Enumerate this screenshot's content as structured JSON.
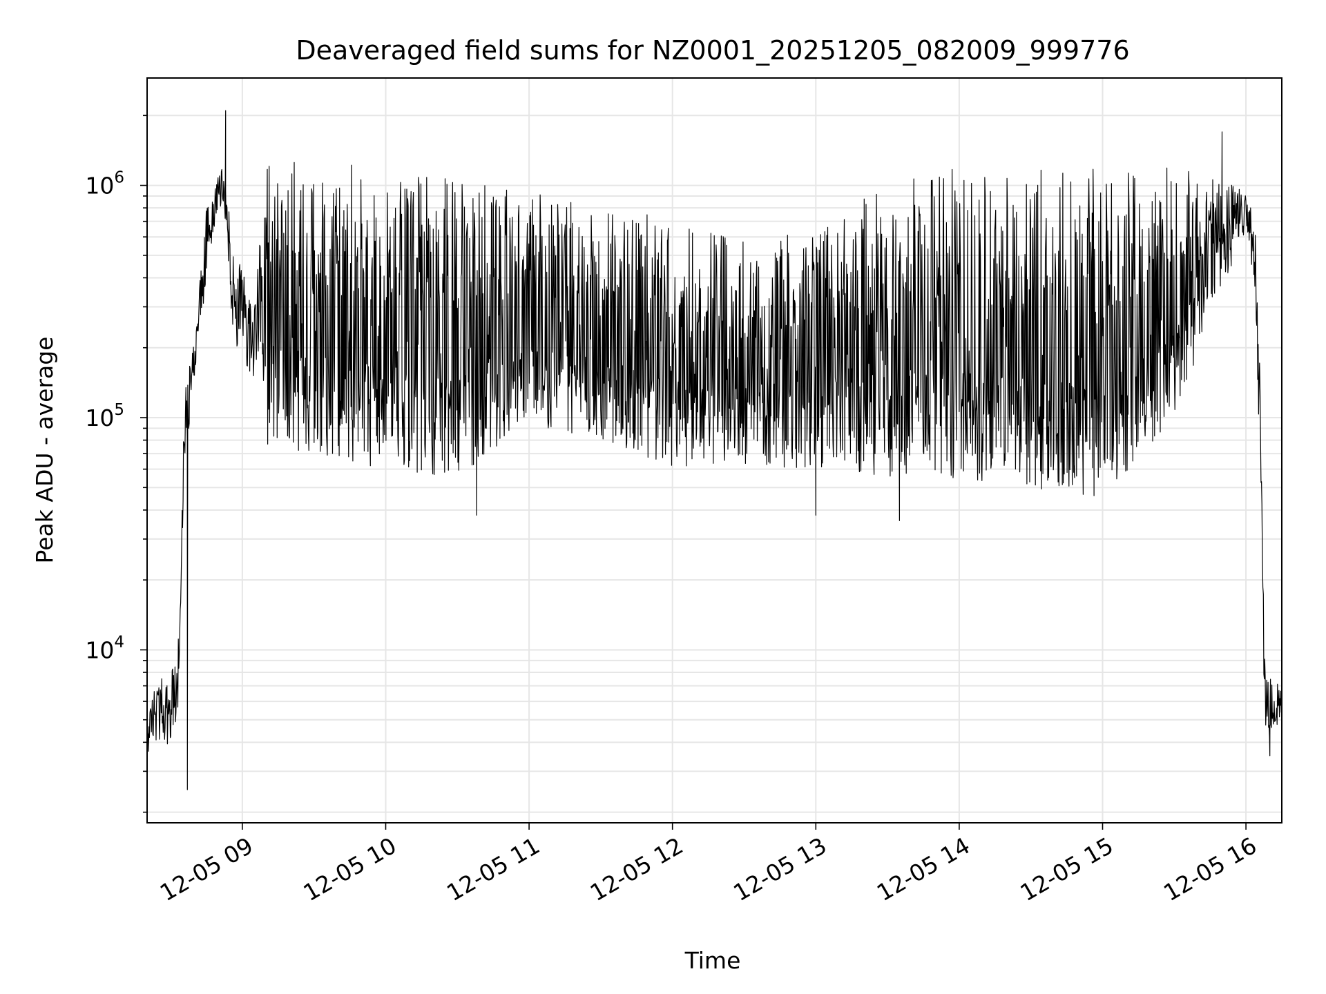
{
  "chart_data": {
    "type": "line",
    "title": "Deaveraged field sums for NZ0001_20251205_082009_999776",
    "xlabel": "Time",
    "ylabel": "Peak ADU - average",
    "yscale": "log",
    "grid": true,
    "legend": "none",
    "line_color": "#000000",
    "grid_color": "#e6e6e6",
    "xlim": [
      "2025-12-05 08:20:09",
      "2025-12-05 16:15:00"
    ],
    "ylim": [
      1800,
      2900000
    ],
    "x_ticks": [
      {
        "t": "2025-12-05 09:00",
        "label": "12-05 09"
      },
      {
        "t": "2025-12-05 10:00",
        "label": "12-05 10"
      },
      {
        "t": "2025-12-05 11:00",
        "label": "12-05 11"
      },
      {
        "t": "2025-12-05 12:00",
        "label": "12-05 12"
      },
      {
        "t": "2025-12-05 13:00",
        "label": "12-05 13"
      },
      {
        "t": "2025-12-05 14:00",
        "label": "12-05 14"
      },
      {
        "t": "2025-12-05 15:00",
        "label": "12-05 15"
      },
      {
        "t": "2025-12-05 16:00",
        "label": "12-05 16"
      }
    ],
    "y_ticks": [
      {
        "v": 10000,
        "base": "10",
        "exp": "4"
      },
      {
        "v": 100000,
        "base": "10",
        "exp": "5"
      },
      {
        "v": 1000000,
        "base": "10",
        "exp": "6"
      }
    ],
    "series": [
      {
        "envelope": [
          {
            "t": "2025-12-05 08:20",
            "low": 3500,
            "high": 6000
          },
          {
            "t": "2025-12-05 08:25",
            "low": 4000,
            "high": 7500
          },
          {
            "t": "2025-12-05 08:30",
            "low": 3800,
            "high": 8000
          },
          {
            "t": "2025-12-05 08:33",
            "low": 5500,
            "high": 9500
          },
          {
            "t": "2025-12-05 08:36",
            "low": 60000,
            "high": 150000
          },
          {
            "t": "2025-12-05 08:40",
            "low": 150000,
            "high": 220000
          },
          {
            "t": "2025-12-05 08:45",
            "low": 400000,
            "high": 800000
          },
          {
            "t": "2025-12-05 08:50",
            "low": 850000,
            "high": 1100000
          },
          {
            "t": "2025-12-05 08:53",
            "low": 700000,
            "high": 1300000
          },
          {
            "t": "2025-12-05 08:56",
            "low": 200000,
            "high": 500000
          },
          {
            "t": "2025-12-05 09:00",
            "low": 200000,
            "high": 450000
          },
          {
            "t": "2025-12-05 09:05",
            "low": 120000,
            "high": 300000
          },
          {
            "t": "2025-12-05 09:10",
            "low": 75000,
            "high": 1300000
          },
          {
            "t": "2025-12-05 09:30",
            "low": 70000,
            "high": 1300000
          },
          {
            "t": "2025-12-05 10:00",
            "low": 60000,
            "high": 1200000
          },
          {
            "t": "2025-12-05 10:30",
            "low": 55000,
            "high": 1050000
          },
          {
            "t": "2025-12-05 11:00",
            "low": 90000,
            "high": 950000
          },
          {
            "t": "2025-12-05 11:30",
            "low": 80000,
            "high": 800000
          },
          {
            "t": "2025-12-05 12:00",
            "low": 60000,
            "high": 750000
          },
          {
            "t": "2025-12-05 12:30",
            "low": 60000,
            "high": 600000
          },
          {
            "t": "2025-12-05 13:00",
            "low": 60000,
            "high": 700000
          },
          {
            "t": "2025-12-05 13:30",
            "low": 55000,
            "high": 1000000
          },
          {
            "t": "2025-12-05 14:00",
            "low": 55000,
            "high": 1200000
          },
          {
            "t": "2025-12-05 14:30",
            "low": 50000,
            "high": 1200000
          },
          {
            "t": "2025-12-05 15:00",
            "low": 45000,
            "high": 1200000
          },
          {
            "t": "2025-12-05 15:30",
            "low": 100000,
            "high": 1300000
          },
          {
            "t": "2025-12-05 15:45",
            "low": 250000,
            "high": 1100000
          },
          {
            "t": "2025-12-05 16:00",
            "low": 650000,
            "high": 950000
          },
          {
            "t": "2025-12-05 16:04",
            "low": 350000,
            "high": 700000
          },
          {
            "t": "2025-12-05 16:06",
            "low": 50000,
            "high": 200000
          },
          {
            "t": "2025-12-05 16:08",
            "low": 4000,
            "high": 8000
          },
          {
            "t": "2025-12-05 16:15",
            "low": 5000,
            "high": 7000
          }
        ],
        "spikes": [
          {
            "t": "2025-12-05 08:37",
            "v": 2500
          },
          {
            "t": "2025-12-05 08:53",
            "v": 2100000
          },
          {
            "t": "2025-12-05 10:38",
            "v": 38000
          },
          {
            "t": "2025-12-05 13:00",
            "v": 38000
          },
          {
            "t": "2025-12-05 13:35",
            "v": 36000
          },
          {
            "t": "2025-12-05 15:50",
            "v": 1700000
          },
          {
            "t": "2025-12-05 16:10",
            "v": 3500
          }
        ]
      }
    ]
  }
}
